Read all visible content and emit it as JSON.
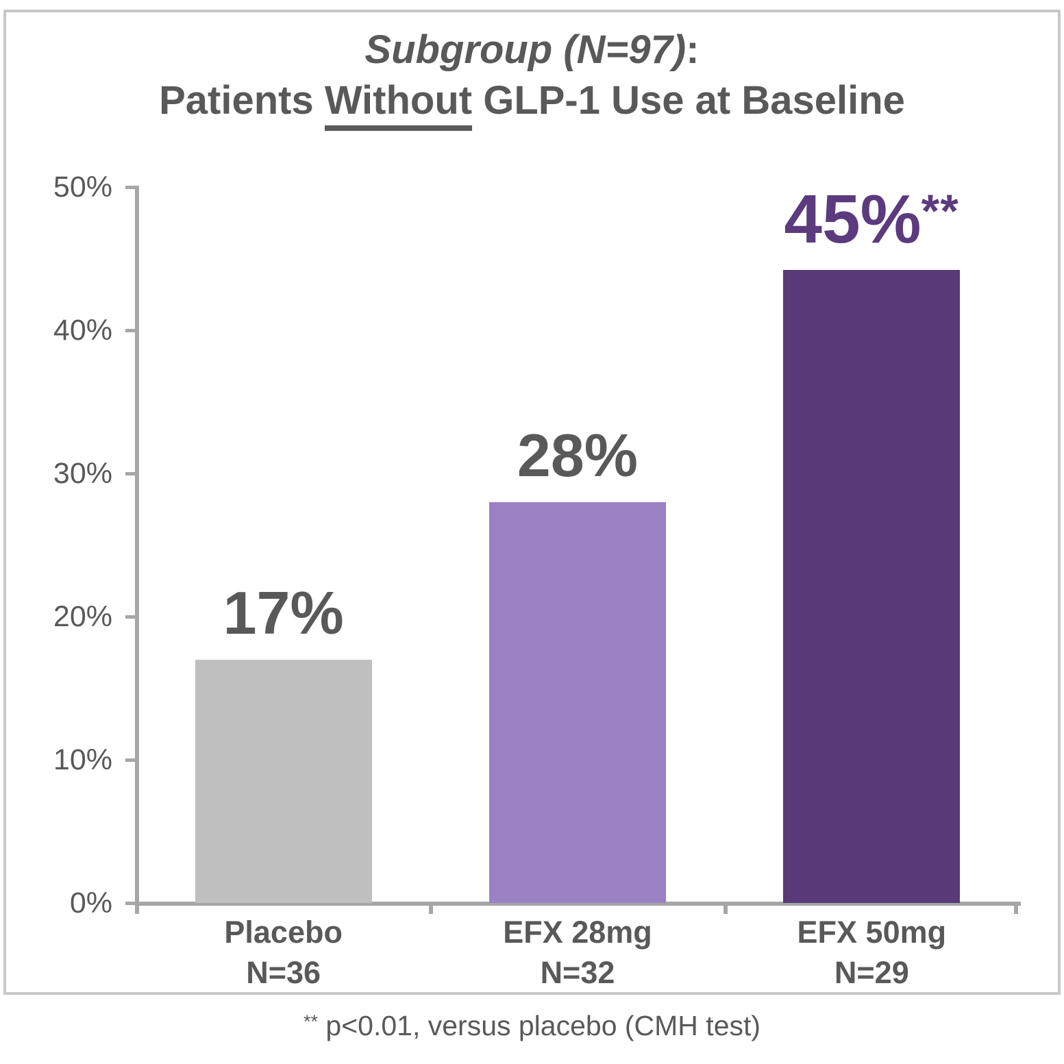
{
  "page": {
    "footnote_marker": "**",
    "footnote_text": " p<0.01, versus placebo (CMH test)"
  },
  "chart_data": {
    "type": "bar",
    "title_line1_italic": "Subgroup (N=97)",
    "title_line1_suffix": ":",
    "title_line2_pre": "Patients ",
    "title_line2_underlined": "Without",
    "title_line2_post": " GLP-1 Use at Baseline",
    "title_full": "Subgroup (N=97): Patients Without GLP-1 Use at Baseline",
    "categories": [
      "Placebo",
      "EFX 28mg",
      "EFX 50mg"
    ],
    "sample_sizes": [
      "N=36",
      "N=32",
      "N=29"
    ],
    "values": [
      17,
      28,
      45
    ],
    "ylim": [
      0,
      50
    ],
    "yticks": [
      "0%",
      "10%",
      "20%",
      "30%",
      "40%",
      "50%"
    ],
    "grid": false,
    "legend": "none",
    "bars": [
      {
        "label_line1": "Placebo",
        "label_line2": "N=36",
        "value": 17,
        "display": "17%",
        "annotation": "",
        "color": "#bfbfbf",
        "value_color": "#595959"
      },
      {
        "label_line1": "EFX 28mg",
        "label_line2": "N=32",
        "value": 28,
        "display": "28%",
        "annotation": "",
        "color": "#9b80c4",
        "value_color": "#595959"
      },
      {
        "label_line1": "EFX 50mg",
        "label_line2": "N=29",
        "value": 45,
        "display": "45%",
        "annotation": "**",
        "color": "#593a78",
        "value_color": "#5b3a7e"
      }
    ],
    "footnote": "** p<0.01, versus placebo (CMH test)",
    "colors": {
      "axis": "#a6a6a6",
      "text": "#595959",
      "frame_border": "#c8c8c8",
      "background": "#ffffff"
    }
  }
}
